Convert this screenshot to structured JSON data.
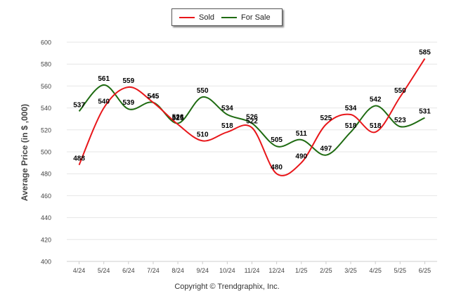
{
  "chart_data": {
    "type": "line",
    "categories": [
      "4/24",
      "5/24",
      "6/24",
      "7/24",
      "8/24",
      "9/24",
      "10/24",
      "11/24",
      "12/24",
      "1/25",
      "2/25",
      "3/25",
      "4/25",
      "5/25",
      "6/25"
    ],
    "series": [
      {
        "name": "Sold",
        "color": "#e8161a",
        "values": [
          488,
          540,
          559,
          545,
          525,
          510,
          518,
          522,
          480,
          490,
          525,
          534,
          518,
          550,
          585
        ]
      },
      {
        "name": "For Sale",
        "color": "#1f6b12",
        "values": [
          537,
          561,
          539,
          545,
          526,
          550,
          534,
          526,
          505,
          511,
          497,
          518,
          542,
          523,
          531
        ]
      }
    ],
    "xlabel": "",
    "ylabel": "Average Price (in $ ,000)",
    "ylim": [
      400,
      600
    ],
    "yticks": [
      400,
      420,
      440,
      460,
      480,
      500,
      520,
      540,
      560,
      580,
      600
    ],
    "grid": true,
    "legend_position": "top-center"
  },
  "legend": {
    "sold_label": "Sold",
    "for_sale_label": "For Sale"
  },
  "credit": "Copyright © Trendgraphix, Inc."
}
